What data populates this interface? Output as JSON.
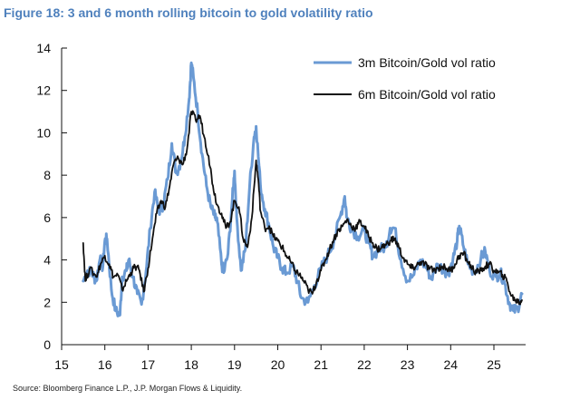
{
  "figure": {
    "title": "Figure 18: 3 and 6 month rolling bitcoin to gold volatility ratio",
    "source": "Source: Bloomberg Finance L.P., J.P. Morgan Flows & Liquidity."
  },
  "chart_data": {
    "type": "line",
    "title": "Figure 18: 3 and 6 month rolling bitcoin to gold volatility ratio",
    "xlabel": "",
    "ylabel": "",
    "xlim": [
      15,
      25.7
    ],
    "ylim": [
      0,
      14
    ],
    "x_ticks": [
      15,
      16,
      17,
      18,
      19,
      20,
      21,
      22,
      23,
      24,
      25
    ],
    "y_ticks": [
      0,
      2,
      4,
      6,
      8,
      10,
      12,
      14
    ],
    "grid": false,
    "legend_position": "top-right",
    "series": [
      {
        "name": "3m Bitcoin/Gold vol ratio",
        "color": "#6A9AD4",
        "points": [
          [
            15.5,
            3.0
          ],
          [
            15.6,
            3.5
          ],
          [
            15.7,
            3.4
          ],
          [
            15.8,
            3.0
          ],
          [
            15.9,
            4.2
          ],
          [
            15.95,
            3.6
          ],
          [
            16.0,
            4.9
          ],
          [
            16.05,
            5.0
          ],
          [
            16.15,
            2.6
          ],
          [
            16.25,
            1.6
          ],
          [
            16.35,
            1.4
          ],
          [
            16.4,
            3.2
          ],
          [
            16.5,
            3.5
          ],
          [
            16.55,
            4.0
          ],
          [
            16.65,
            3.2
          ],
          [
            16.75,
            2.4
          ],
          [
            16.85,
            1.9
          ],
          [
            16.95,
            3.4
          ],
          [
            17.05,
            5.5
          ],
          [
            17.15,
            7.2
          ],
          [
            17.25,
            6.3
          ],
          [
            17.35,
            6.6
          ],
          [
            17.45,
            7.8
          ],
          [
            17.55,
            9.5
          ],
          [
            17.65,
            8.1
          ],
          [
            17.75,
            8.6
          ],
          [
            17.85,
            9.8
          ],
          [
            17.95,
            11.6
          ],
          [
            18.0,
            13.3
          ],
          [
            18.05,
            12.6
          ],
          [
            18.15,
            10.9
          ],
          [
            18.25,
            9.0
          ],
          [
            18.35,
            7.5
          ],
          [
            18.45,
            6.5
          ],
          [
            18.55,
            6.0
          ],
          [
            18.6,
            5.8
          ],
          [
            18.7,
            3.8
          ],
          [
            18.75,
            3.4
          ],
          [
            18.85,
            4.3
          ],
          [
            18.95,
            6.9
          ],
          [
            19.0,
            8.2
          ],
          [
            19.05,
            6.0
          ],
          [
            19.15,
            3.5
          ],
          [
            19.25,
            4.5
          ],
          [
            19.35,
            7.5
          ],
          [
            19.45,
            9.8
          ],
          [
            19.5,
            10.3
          ],
          [
            19.6,
            7.5
          ],
          [
            19.7,
            6.4
          ],
          [
            19.8,
            5.6
          ],
          [
            19.9,
            4.6
          ],
          [
            20.0,
            4.1
          ],
          [
            20.1,
            3.6
          ],
          [
            20.2,
            3.4
          ],
          [
            20.35,
            3.7
          ],
          [
            20.45,
            3.0
          ],
          [
            20.55,
            2.2
          ],
          [
            20.7,
            2.0
          ],
          [
            20.85,
            2.8
          ],
          [
            21.0,
            3.6
          ],
          [
            21.15,
            4.2
          ],
          [
            21.3,
            4.9
          ],
          [
            21.45,
            6.1
          ],
          [
            21.55,
            7.0
          ],
          [
            21.6,
            6.0
          ],
          [
            21.7,
            5.5
          ],
          [
            21.85,
            5.1
          ],
          [
            22.0,
            5.4
          ],
          [
            22.1,
            4.8
          ],
          [
            22.2,
            4.2
          ],
          [
            22.35,
            4.5
          ],
          [
            22.5,
            4.6
          ],
          [
            22.6,
            5.5
          ],
          [
            22.7,
            5.5
          ],
          [
            22.85,
            4.0
          ],
          [
            23.0,
            3.0
          ],
          [
            23.15,
            3.3
          ],
          [
            23.3,
            4.0
          ],
          [
            23.45,
            3.6
          ],
          [
            23.55,
            3.1
          ],
          [
            23.7,
            3.8
          ],
          [
            23.85,
            3.5
          ],
          [
            23.95,
            3.4
          ],
          [
            24.05,
            4.0
          ],
          [
            24.15,
            4.9
          ],
          [
            24.2,
            5.6
          ],
          [
            24.3,
            4.6
          ],
          [
            24.4,
            3.8
          ],
          [
            24.55,
            3.4
          ],
          [
            24.7,
            4.1
          ],
          [
            24.8,
            4.4
          ],
          [
            24.9,
            3.5
          ],
          [
            25.05,
            3.2
          ],
          [
            25.15,
            3.4
          ],
          [
            25.25,
            2.9
          ],
          [
            25.35,
            2.0
          ],
          [
            25.45,
            1.6
          ],
          [
            25.55,
            1.7
          ],
          [
            25.65,
            2.4
          ]
        ]
      },
      {
        "name": "6m Bitcoin/Gold vol ratio",
        "color": "#111111",
        "points": [
          [
            15.5,
            4.8
          ],
          [
            15.55,
            3.0
          ],
          [
            15.65,
            3.6
          ],
          [
            15.8,
            3.2
          ],
          [
            15.9,
            3.8
          ],
          [
            16.0,
            4.2
          ],
          [
            16.1,
            3.8
          ],
          [
            16.2,
            3.2
          ],
          [
            16.3,
            3.3
          ],
          [
            16.4,
            2.6
          ],
          [
            16.5,
            3.0
          ],
          [
            16.6,
            3.4
          ],
          [
            16.7,
            3.7
          ],
          [
            16.8,
            3.5
          ],
          [
            16.9,
            2.5
          ],
          [
            17.0,
            3.6
          ],
          [
            17.1,
            5.0
          ],
          [
            17.2,
            6.2
          ],
          [
            17.3,
            6.8
          ],
          [
            17.4,
            6.5
          ],
          [
            17.5,
            7.5
          ],
          [
            17.6,
            8.6
          ],
          [
            17.7,
            8.8
          ],
          [
            17.8,
            8.5
          ],
          [
            17.9,
            9.2
          ],
          [
            18.0,
            11.0
          ],
          [
            18.1,
            10.6
          ],
          [
            18.2,
            10.8
          ],
          [
            18.3,
            9.8
          ],
          [
            18.4,
            8.9
          ],
          [
            18.5,
            7.5
          ],
          [
            18.6,
            6.6
          ],
          [
            18.7,
            6.2
          ],
          [
            18.8,
            5.5
          ],
          [
            18.9,
            5.8
          ],
          [
            19.0,
            6.8
          ],
          [
            19.1,
            6.5
          ],
          [
            19.2,
            5.0
          ],
          [
            19.3,
            4.6
          ],
          [
            19.4,
            6.0
          ],
          [
            19.5,
            8.7
          ],
          [
            19.55,
            7.8
          ],
          [
            19.6,
            6.3
          ],
          [
            19.7,
            5.5
          ],
          [
            19.8,
            5.6
          ],
          [
            19.9,
            5.1
          ],
          [
            20.0,
            4.9
          ],
          [
            20.1,
            4.6
          ],
          [
            20.2,
            4.2
          ],
          [
            20.3,
            3.9
          ],
          [
            20.4,
            3.5
          ],
          [
            20.5,
            3.3
          ],
          [
            20.6,
            3.0
          ],
          [
            20.7,
            2.6
          ],
          [
            20.8,
            2.4
          ],
          [
            20.9,
            3.0
          ],
          [
            21.0,
            3.5
          ],
          [
            21.1,
            4.0
          ],
          [
            21.2,
            4.5
          ],
          [
            21.3,
            5.0
          ],
          [
            21.4,
            5.4
          ],
          [
            21.5,
            5.6
          ],
          [
            21.6,
            5.9
          ],
          [
            21.7,
            5.6
          ],
          [
            21.8,
            5.5
          ],
          [
            21.9,
            5.8
          ],
          [
            22.0,
            5.6
          ],
          [
            22.1,
            5.1
          ],
          [
            22.2,
            4.8
          ],
          [
            22.3,
            4.5
          ],
          [
            22.4,
            4.6
          ],
          [
            22.5,
            4.7
          ],
          [
            22.6,
            4.9
          ],
          [
            22.7,
            5.0
          ],
          [
            22.8,
            4.6
          ],
          [
            22.9,
            4.1
          ],
          [
            23.0,
            3.8
          ],
          [
            23.1,
            3.6
          ],
          [
            23.2,
            3.7
          ],
          [
            23.3,
            3.9
          ],
          [
            23.4,
            3.8
          ],
          [
            23.5,
            3.6
          ],
          [
            23.6,
            3.5
          ],
          [
            23.7,
            3.6
          ],
          [
            23.8,
            3.7
          ],
          [
            23.9,
            3.6
          ],
          [
            24.0,
            3.5
          ],
          [
            24.1,
            3.8
          ],
          [
            24.2,
            4.2
          ],
          [
            24.3,
            4.3
          ],
          [
            24.4,
            3.9
          ],
          [
            24.5,
            3.6
          ],
          [
            24.6,
            3.4
          ],
          [
            24.7,
            3.5
          ],
          [
            24.8,
            3.7
          ],
          [
            24.9,
            3.8
          ],
          [
            25.0,
            3.5
          ],
          [
            25.1,
            3.4
          ],
          [
            25.2,
            3.3
          ],
          [
            25.3,
            3.0
          ],
          [
            25.4,
            2.3
          ],
          [
            25.5,
            2.1
          ],
          [
            25.6,
            2.0
          ],
          [
            25.65,
            2.1
          ]
        ]
      }
    ]
  }
}
